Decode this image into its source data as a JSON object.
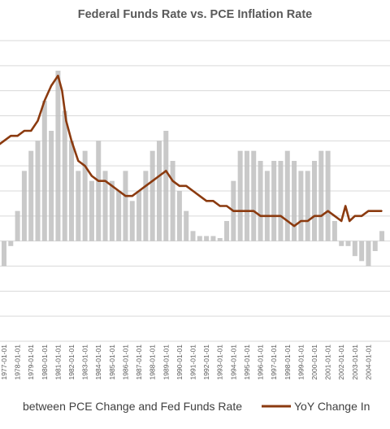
{
  "title": "Federal Funds Rate vs. PCE Inflation Rate",
  "chart_data": {
    "type": "bar+line",
    "title": "Federal Funds Rate vs. PCE Inflation Rate",
    "xlabel": "",
    "ylabel": "",
    "ylim": [
      -10,
      20
    ],
    "grid": true,
    "legend_position": "bottom",
    "x_tick_labels": [
      "1977-01-01",
      "1978-01-01",
      "1979-01-01",
      "1980-01-01",
      "1981-01-01",
      "1982-01-01",
      "1983-01-01",
      "1984-01-01",
      "1985-01-01",
      "1986-01-01",
      "1987-01-01",
      "1988-01-01",
      "1989-01-01",
      "1990-01-01",
      "1991-01-01",
      "1992-01-01",
      "1993-01-01",
      "1994-01-01",
      "1995-01-01",
      "1996-01-01",
      "1997-01-01",
      "1998-01-01",
      "1999-01-01",
      "2000-01-01",
      "2001-01-01",
      "2002-01-01",
      "2003-01-01",
      "2004-01-01"
    ],
    "series": [
      {
        "name": "between PCE Change and Fed Funds Rate",
        "type": "bar",
        "color": "#bfbfbf",
        "x": [
          1976.5,
          1977.0,
          1977.5,
          1978.0,
          1978.5,
          1979.0,
          1979.5,
          1980.0,
          1980.5,
          1981.0,
          1981.5,
          1982.0,
          1982.5,
          1983.0,
          1983.5,
          1984.0,
          1984.5,
          1985.0,
          1985.5,
          1986.0,
          1986.5,
          1987.0,
          1987.5,
          1988.0,
          1988.5,
          1989.0,
          1989.5,
          1990.0,
          1990.5,
          1991.0,
          1991.5,
          1992.0,
          1992.5,
          1993.0,
          1993.5,
          1994.0,
          1994.5,
          1995.0,
          1995.5,
          1996.0,
          1996.5,
          1997.0,
          1997.5,
          1998.0,
          1998.5,
          1999.0,
          1999.5,
          2000.0,
          2000.5,
          2001.0,
          2001.5,
          2002.0,
          2002.5,
          2003.0,
          2003.5,
          2004.0,
          2004.5,
          2005.0
        ],
        "values": [
          -1.5,
          -2.5,
          -0.5,
          3,
          7,
          9,
          10,
          14,
          11,
          17,
          13,
          10,
          7,
          9,
          6,
          10,
          7,
          6,
          5,
          7,
          4,
          5,
          7,
          9,
          10,
          11,
          8,
          5,
          3,
          1,
          0.5,
          0.5,
          0.5,
          0.3,
          2,
          6,
          9,
          9,
          9,
          8,
          7,
          8,
          8,
          9,
          8,
          7,
          7,
          8,
          9,
          9,
          2,
          -0.5,
          -0.5,
          -1.5,
          -2,
          -2.5,
          -1,
          1
        ]
      },
      {
        "name": "YoY Change In",
        "type": "line",
        "color": "#8b3a0f",
        "x": [
          1976.5,
          1977.0,
          1977.5,
          1978.0,
          1978.5,
          1979.0,
          1979.5,
          1980.0,
          1980.5,
          1981.0,
          1981.3,
          1981.6,
          1982.0,
          1982.5,
          1983.0,
          1983.5,
          1984.0,
          1984.5,
          1985.0,
          1985.5,
          1986.0,
          1986.5,
          1987.0,
          1987.5,
          1988.0,
          1988.5,
          1989.0,
          1989.5,
          1990.0,
          1990.5,
          1991.0,
          1991.5,
          1992.0,
          1992.5,
          1993.0,
          1993.5,
          1994.0,
          1994.5,
          1995.0,
          1995.5,
          1996.0,
          1996.5,
          1997.0,
          1997.5,
          1998.0,
          1998.5,
          1999.0,
          1999.5,
          2000.0,
          2000.5,
          2001.0,
          2001.5,
          2002.0,
          2002.3,
          2002.6,
          2003.0,
          2003.5,
          2004.0,
          2004.5,
          2005.0
        ],
        "values": [
          9.5,
          10.0,
          10.5,
          10.5,
          11.0,
          11.0,
          12.0,
          14.0,
          15.5,
          16.5,
          15.0,
          12.0,
          10.0,
          8.0,
          7.5,
          6.5,
          6.0,
          6.0,
          5.5,
          5.0,
          4.5,
          4.5,
          5.0,
          5.5,
          6.0,
          6.5,
          7.0,
          6.0,
          5.5,
          5.5,
          5.0,
          4.5,
          4.0,
          4.0,
          3.5,
          3.5,
          3.0,
          3.0,
          3.0,
          3.0,
          2.5,
          2.5,
          2.5,
          2.5,
          2.0,
          1.5,
          2.0,
          2.0,
          2.5,
          2.5,
          3.0,
          2.5,
          2.0,
          3.5,
          2.0,
          2.5,
          2.5,
          3.0,
          3.0,
          3.0
        ]
      }
    ]
  }
}
